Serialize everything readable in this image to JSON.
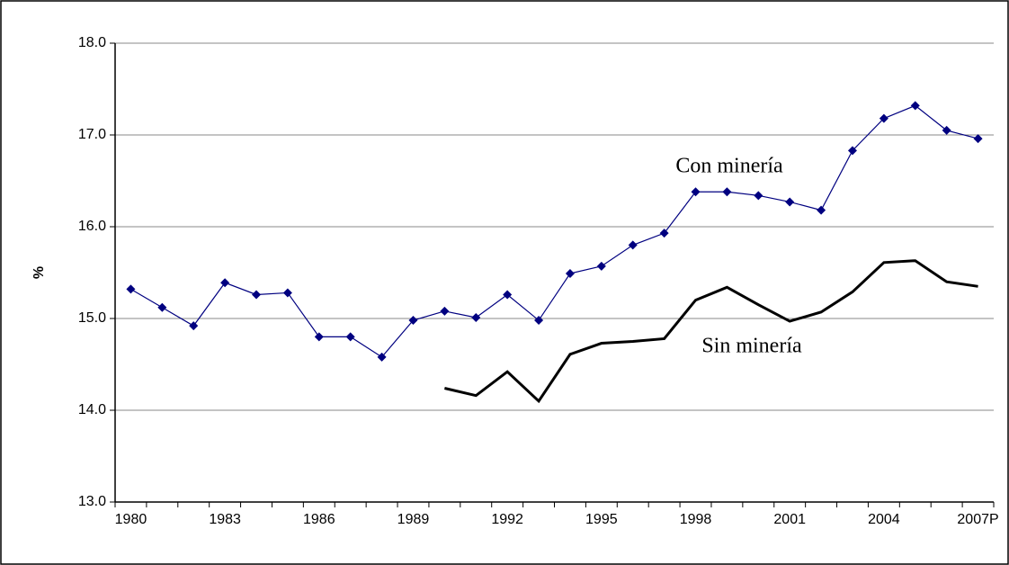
{
  "chart_data": {
    "type": "line",
    "ylabel": "%",
    "categories": [
      "1980",
      null,
      null,
      "1983",
      null,
      null,
      "1986",
      null,
      null,
      "1989",
      null,
      null,
      "1992",
      null,
      null,
      "1995",
      null,
      null,
      "1998",
      null,
      null,
      "2001",
      null,
      null,
      "2004",
      null,
      null,
      "2007P"
    ],
    "series": [
      {
        "name": "Con minería",
        "color": "#000080",
        "marker": "diamond",
        "values": [
          15.32,
          15.12,
          14.92,
          15.39,
          15.26,
          15.28,
          14.8,
          14.8,
          14.58,
          14.98,
          15.08,
          15.01,
          15.26,
          14.98,
          15.49,
          15.57,
          15.8,
          15.93,
          16.38,
          16.38,
          16.34,
          16.27,
          16.18,
          16.83,
          17.18,
          17.32,
          17.05,
          16.96
        ]
      },
      {
        "name": "Sin minería",
        "color": "#000000",
        "values": [
          null,
          null,
          null,
          null,
          null,
          null,
          null,
          null,
          null,
          null,
          14.24,
          14.16,
          14.42,
          14.1,
          14.61,
          14.73,
          14.75,
          14.78,
          15.2,
          15.34,
          15.15,
          14.97,
          15.07,
          15.29,
          15.61,
          15.63,
          15.4,
          15.35
        ]
      }
    ],
    "ylim": [
      13,
      18
    ],
    "yticks": [
      {
        "value": 13,
        "label": "13.0"
      },
      {
        "value": 14,
        "label": "14.0"
      },
      {
        "value": 15,
        "label": "15.0"
      },
      {
        "value": 16,
        "label": "16.0"
      },
      {
        "value": 17,
        "label": "17.0"
      },
      {
        "value": 18,
        "label": "18.0"
      }
    ],
    "grid": true
  }
}
